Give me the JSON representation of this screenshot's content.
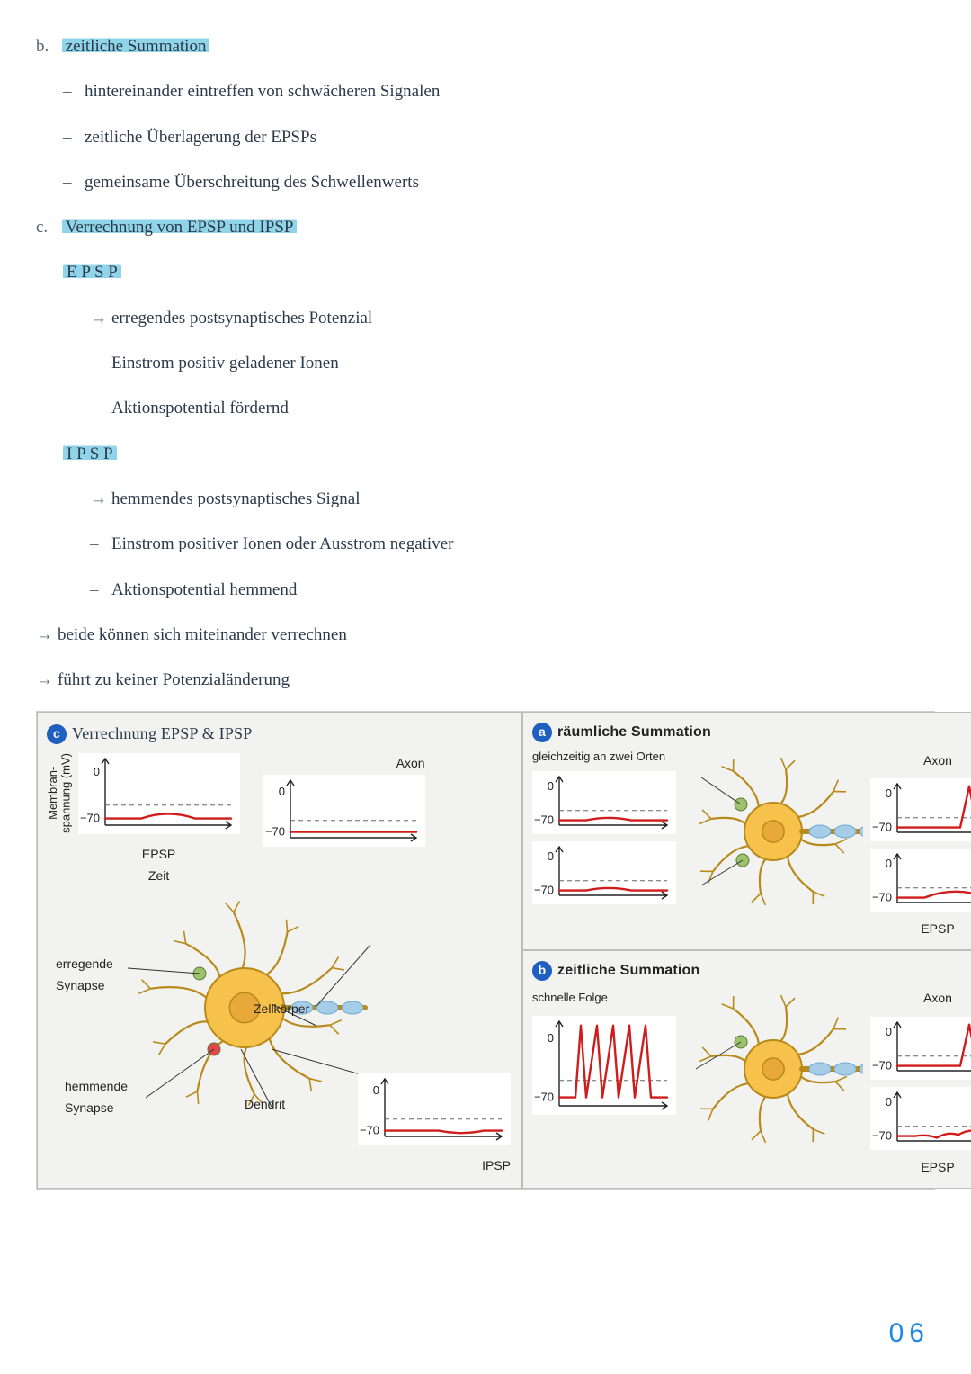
{
  "colors": {
    "ink": "#2b3a4a",
    "highlight": "#8fd4e8",
    "axis": "#222222",
    "thresholdDash": "#666666",
    "trace": "#d11c1c",
    "panelBg": "#f2f2f0",
    "badgeA": "#1f5fbf",
    "badgeB": "#1f5fbf",
    "badgeC": "#1f5fbf",
    "neuronFill": "#f6c24b",
    "neuronStroke": "#b88a1a",
    "synGreen": "#9cc26a",
    "synRed": "#e04848",
    "axonBlue": "#a6cde8",
    "pageNum": "#1e88e5"
  },
  "heading_b": {
    "marker": "b.",
    "text": "zeitliche Summation"
  },
  "b_points": {
    "p1": "hintereinander eintreffen von schwächeren Signalen",
    "p2": "zeitliche Überlagerung der EPSPs",
    "p3": "gemeinsame Überschreitung des Schwellenwerts"
  },
  "heading_c": {
    "marker": "c.",
    "text": "Verrechnung von EPSP und IPSP"
  },
  "epsp": {
    "title": "E P S P",
    "def": "erregendes postsynaptisches Potenzial",
    "p1": "Einstrom positiv geladener Ionen",
    "p2": "Aktionspotential fördernd"
  },
  "ipsp": {
    "title": "I P S P",
    "def": "hemmendes postsynaptisches Signal",
    "p1": "Einstrom positiver Ionen oder Ausstrom negativer",
    "p2": "Aktionspotential hemmend"
  },
  "extra": {
    "e1": "beide können sich miteinander verrechnen",
    "e2": "führt zu keiner Potenzialänderung"
  },
  "panels": {
    "a": {
      "badge": "a",
      "title": "räumliche Summation",
      "sub": "gleichzeitig an zwei Orten"
    },
    "b": {
      "badge": "b",
      "title": "zeitliche Summation",
      "sub": "schnelle Folge"
    },
    "c": {
      "badge": "c",
      "title": "Verrechnung EPSP & IPSP"
    }
  },
  "axis": {
    "zero": "0",
    "rest": "−70"
  },
  "labels": {
    "axon": "Axon",
    "epsp": "EPSP",
    "ipsp": "IPSP",
    "zeit": "Zeit",
    "membran": "Membran-",
    "spannung": "spannung (mV)",
    "erregende": "erregende",
    "synapse": "Synapse",
    "hemmende": "hemmende",
    "zellkorper": "Zellkörper",
    "dendrit": "Dendrit"
  },
  "chartStyle": {
    "ylim": [
      -80,
      20
    ],
    "yticks": [
      0,
      -70
    ],
    "dashY": -50,
    "traceWidth": 2.4,
    "axisWidth": 1.4
  },
  "pageNumber": "06"
}
